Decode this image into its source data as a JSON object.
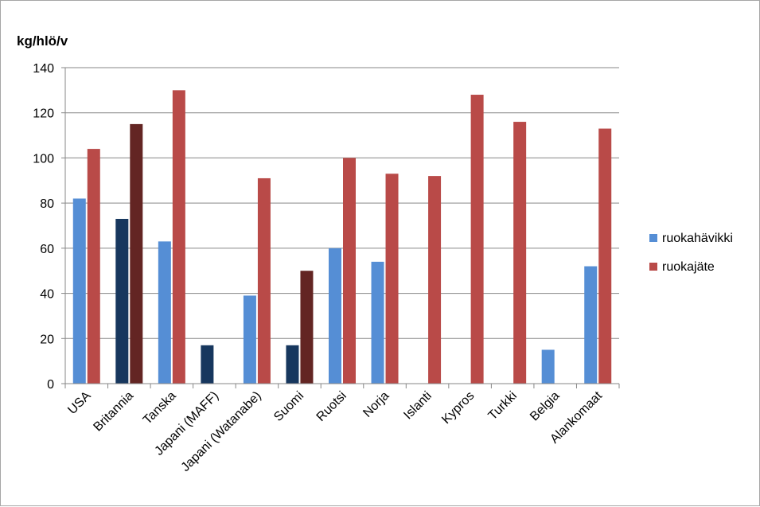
{
  "chart_data": {
    "type": "bar",
    "ylabel": "kg/hlö/v",
    "ylim": [
      0,
      140
    ],
    "yticks": [
      0,
      20,
      40,
      60,
      80,
      100,
      120,
      140
    ],
    "grid": true,
    "legend_position": "right",
    "categories": [
      "USA",
      "Britannia",
      "Tanska",
      "Japani (MAFF)",
      "Japani (Watanabe)",
      "Suomi",
      "Ruotsi",
      "Norja",
      "Islanti",
      "Kypros",
      "Turkki",
      "Belgia",
      "Alankomaat"
    ],
    "series": [
      {
        "name": "ruokahävikki",
        "color": "#558ED5",
        "values": [
          82,
          73,
          63,
          17,
          39,
          17,
          60,
          54,
          null,
          null,
          null,
          15,
          52
        ],
        "point_colors": {
          "1": "#17375E",
          "3": "#17375E",
          "5": "#17375E"
        }
      },
      {
        "name": "ruokajäte",
        "color": "#B94A48",
        "values": [
          104,
          115,
          130,
          null,
          91,
          50,
          100,
          93,
          92,
          128,
          116,
          null,
          113
        ],
        "point_colors": {
          "1": "#632523",
          "5": "#632523"
        }
      }
    ]
  }
}
